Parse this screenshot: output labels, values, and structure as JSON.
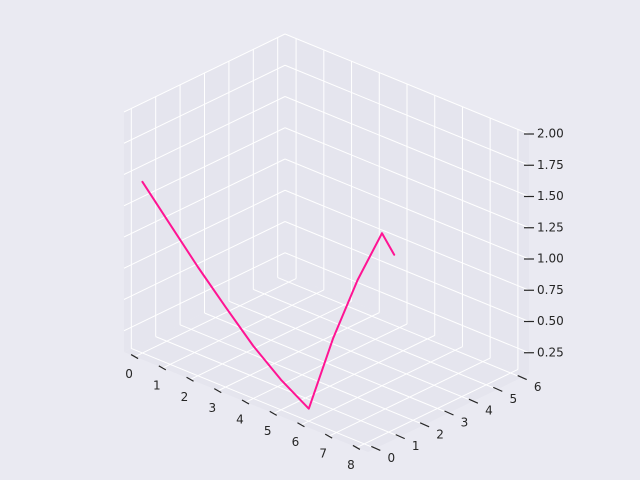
{
  "chart_data": {
    "type": "line",
    "projection": "3d",
    "grid": true,
    "title": "",
    "xlabel": "",
    "ylabel": "",
    "zlabel": "",
    "x_ticks": [
      "0",
      "1",
      "2",
      "3",
      "4",
      "5",
      "6",
      "7",
      "8"
    ],
    "y_ticks": [
      "0",
      "1",
      "2",
      "3",
      "4",
      "5",
      "6"
    ],
    "z_ticks": [
      "0.25",
      "0.50",
      "0.75",
      "1.00",
      "1.25",
      "1.50",
      "1.75",
      "2.00"
    ],
    "xlim": [
      -0.4,
      8.4
    ],
    "ylim": [
      -0.3,
      6.3
    ],
    "zlim": [
      0.08,
      2.0
    ],
    "series": [
      {
        "color": "#ff1493",
        "points": [
          {
            "x": 0,
            "y": 0,
            "z": 1.45
          },
          {
            "x": 1,
            "y": 0,
            "z": 1.2
          },
          {
            "x": 2,
            "y": 0,
            "z": 0.95
          },
          {
            "x": 3,
            "y": 0,
            "z": 0.72
          },
          {
            "x": 4,
            "y": 0,
            "z": 0.5
          },
          {
            "x": 5,
            "y": 0,
            "z": 0.32
          },
          {
            "x": 6,
            "y": 0,
            "z": 0.18
          },
          {
            "x": 6,
            "y": 1,
            "z": 0.65
          },
          {
            "x": 6,
            "y": 2,
            "z": 1.02
          },
          {
            "x": 6,
            "y": 3,
            "z": 1.3
          },
          {
            "x": 6,
            "y": 3.5,
            "z": 1.08
          }
        ]
      }
    ]
  }
}
